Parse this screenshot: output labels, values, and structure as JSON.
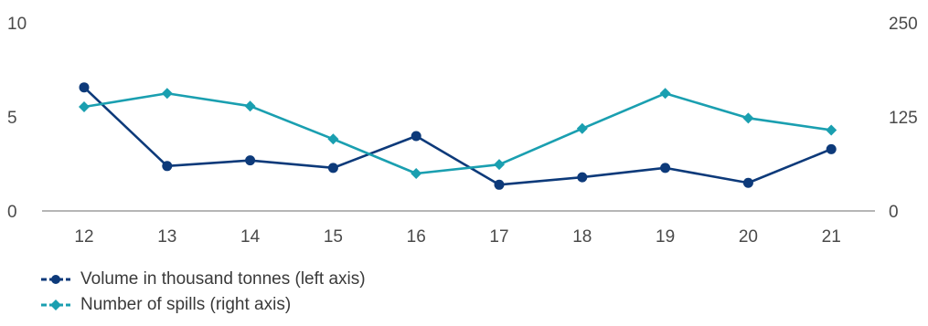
{
  "chart_data": {
    "type": "line",
    "categories": [
      "12",
      "13",
      "14",
      "15",
      "16",
      "17",
      "18",
      "19",
      "20",
      "21"
    ],
    "left_axis": {
      "ticks": [
        "0",
        "5",
        "10"
      ],
      "ylim": [
        0,
        10
      ]
    },
    "right_axis": {
      "ticks": [
        "0",
        "125",
        "250"
      ],
      "ylim": [
        0,
        250
      ]
    },
    "series": [
      {
        "name": "Volume in thousand tonnes (left axis)",
        "axis": "left",
        "marker": "circle",
        "color": "#0d3a7a",
        "values": [
          6.6,
          2.4,
          2.7,
          2.3,
          4.0,
          1.4,
          1.8,
          2.3,
          1.5,
          3.3
        ]
      },
      {
        "name": "Number of spills (right axis)",
        "axis": "right",
        "marker": "diamond",
        "color": "#1a9fb0",
        "values": [
          139,
          157,
          140,
          96,
          50,
          62,
          110,
          157,
          124,
          108
        ]
      }
    ]
  }
}
